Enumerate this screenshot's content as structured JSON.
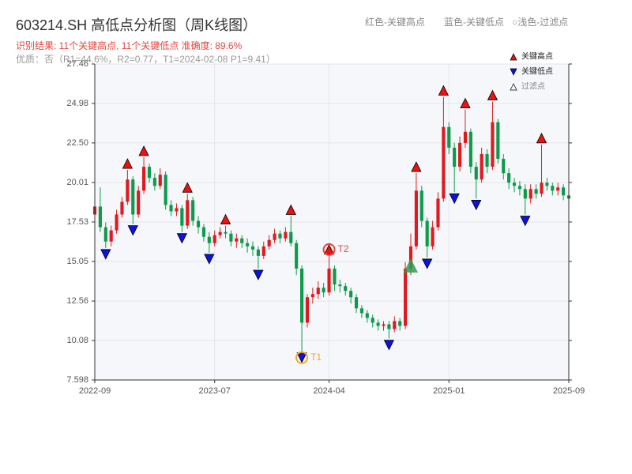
{
  "chart_data": {
    "type": "candlestick",
    "title": "603214.SH 高低点分析图（周K线图）",
    "header_legend": [
      "红色-关键高点",
      "蓝色-关键低点",
      "○浅色-过滤点"
    ],
    "subtitle": "识别结果: 11个关键高点, 11个关键低点  准确度: 89.6%",
    "note": "优质：否（R1=44.6%，R2=0.77，T1=2024-02-08 P1=9.41）",
    "categories": [
      "2022-09",
      null,
      null,
      null,
      null,
      null,
      null,
      null,
      null,
      null,
      null,
      null,
      null,
      null,
      null,
      null,
      null,
      null,
      null,
      null,
      null,
      null,
      "2023-07",
      null,
      null,
      null,
      null,
      null,
      null,
      null,
      null,
      null,
      null,
      null,
      null,
      null,
      null,
      null,
      null,
      null,
      null,
      null,
      null,
      "2024-04",
      null,
      null,
      null,
      null,
      null,
      null,
      null,
      null,
      null,
      null,
      null,
      null,
      null,
      null,
      null,
      null,
      null,
      null,
      null,
      null,
      null,
      "2025-01",
      null,
      null,
      null,
      null,
      null,
      null,
      null,
      null,
      null,
      null,
      null,
      null,
      null,
      null,
      null,
      null,
      null,
      null,
      null,
      null,
      null,
      "2025-09"
    ],
    "open": [
      18.0,
      18.5,
      17.2,
      16.3,
      17.0,
      18.0,
      18.8,
      20.2,
      18.0,
      19.5,
      21.0,
      20.3,
      19.8,
      20.5,
      18.6,
      18.2,
      18.4,
      17.3,
      18.9,
      17.6,
      17.2,
      16.6,
      16.2,
      16.7,
      16.9,
      16.8,
      16.3,
      16.5,
      16.2,
      16.0,
      15.8,
      15.4,
      16.0,
      16.4,
      16.8,
      16.5,
      16.9,
      16.2,
      14.6,
      11.2,
      12.8,
      13.0,
      13.4,
      13.1,
      14.6,
      13.6,
      13.5,
      13.2,
      12.8,
      12.1,
      11.8,
      11.5,
      11.2,
      11.0,
      11.1,
      10.8,
      11.3,
      11.0,
      14.6,
      16.0,
      19.5,
      17.6,
      16.0,
      17.2,
      19.0,
      23.5,
      22.2,
      21.0,
      22.5,
      23.2,
      21.0,
      20.2,
      21.8,
      21.0,
      23.8,
      21.5,
      20.6,
      20.0,
      19.8,
      19.6,
      19.0,
      19.6,
      19.3,
      20.0,
      19.8,
      19.5,
      19.7,
      19.2
    ],
    "high": [
      18.9,
      19.7,
      17.5,
      17.3,
      18.3,
      19.1,
      20.8,
      20.4,
      19.8,
      21.6,
      21.2,
      20.6,
      20.9,
      20.7,
      18.9,
      18.7,
      18.6,
      19.3,
      19.1,
      17.9,
      17.4,
      16.9,
      17.0,
      17.2,
      17.3,
      17.0,
      16.8,
      16.7,
      16.5,
      16.3,
      16.0,
      16.3,
      16.7,
      17.1,
      17.0,
      17.2,
      17.9,
      16.4,
      14.8,
      13.0,
      13.4,
      13.8,
      13.7,
      15.4,
      14.8,
      13.9,
      13.7,
      13.4,
      13.0,
      12.3,
      12.0,
      11.7,
      11.4,
      11.3,
      11.3,
      11.6,
      11.5,
      15.0,
      16.8,
      20.6,
      19.8,
      17.8,
      17.6,
      19.4,
      25.4,
      23.8,
      22.5,
      22.9,
      24.6,
      23.4,
      21.3,
      22.2,
      22.1,
      25.1,
      24.0,
      21.8,
      20.9,
      20.3,
      20.1,
      19.9,
      19.9,
      19.9,
      22.4,
      20.3,
      20.0,
      20.0,
      19.9,
      19.4
    ],
    "low": [
      17.6,
      16.9,
      15.9,
      16.0,
      16.8,
      17.8,
      18.6,
      17.4,
      17.8,
      19.3,
      20.0,
      19.5,
      19.6,
      18.3,
      17.9,
      17.9,
      16.9,
      17.1,
      17.3,
      16.8,
      16.3,
      15.6,
      16.0,
      16.5,
      16.5,
      16.0,
      15.9,
      15.9,
      15.6,
      15.4,
      14.6,
      15.2,
      15.8,
      16.2,
      16.2,
      16.3,
      16.0,
      14.2,
      9.4,
      10.9,
      12.4,
      12.7,
      12.8,
      12.9,
      13.2,
      13.1,
      12.9,
      12.4,
      11.8,
      11.5,
      11.2,
      10.9,
      10.7,
      10.7,
      10.2,
      10.6,
      10.7,
      10.8,
      14.2,
      15.8,
      17.2,
      15.3,
      15.8,
      17.0,
      18.8,
      21.8,
      19.4,
      20.7,
      22.2,
      20.6,
      19.0,
      20.0,
      20.6,
      20.8,
      21.2,
      20.2,
      19.6,
      19.4,
      19.2,
      18.0,
      18.7,
      19.0,
      19.1,
      19.5,
      19.2,
      19.2,
      18.9,
      18.7
    ],
    "close": [
      18.5,
      17.2,
      16.3,
      17.0,
      18.0,
      18.8,
      20.2,
      18.0,
      19.5,
      21.0,
      20.3,
      19.8,
      20.5,
      18.6,
      18.2,
      18.4,
      17.3,
      18.9,
      17.6,
      17.2,
      16.6,
      16.2,
      16.7,
      16.9,
      16.8,
      16.3,
      16.5,
      16.2,
      16.0,
      15.8,
      15.4,
      16.0,
      16.4,
      16.8,
      16.5,
      16.9,
      16.2,
      14.6,
      11.2,
      12.8,
      13.0,
      13.4,
      13.1,
      14.6,
      13.6,
      13.5,
      13.2,
      12.8,
      12.1,
      11.8,
      11.5,
      11.2,
      11.0,
      11.1,
      10.8,
      11.3,
      11.0,
      14.6,
      16.0,
      19.5,
      17.6,
      16.0,
      17.2,
      19.0,
      23.5,
      22.2,
      21.0,
      22.5,
      23.2,
      21.0,
      20.2,
      21.8,
      21.0,
      23.8,
      21.5,
      20.6,
      20.0,
      19.8,
      19.6,
      19.0,
      19.6,
      19.3,
      20.0,
      19.8,
      19.5,
      19.7,
      19.2,
      19.0
    ],
    "up_color": "#e0191e",
    "down_color": "#0d9a4a",
    "markers": [
      {
        "name": "关键高点",
        "color": "#ee1111",
        "shape": "up",
        "indices": [
          6,
          9,
          17,
          24,
          36,
          43,
          59,
          64,
          68,
          73,
          82
        ],
        "values": [
          20.8,
          21.6,
          19.3,
          17.3,
          17.9,
          15.4,
          20.6,
          25.4,
          24.6,
          25.1,
          22.4
        ]
      },
      {
        "name": "关键低点",
        "color": "#1111dd",
        "shape": "down",
        "indices": [
          2,
          7,
          16,
          21,
          30,
          38,
          54,
          61,
          66,
          70,
          79
        ],
        "values": [
          15.9,
          17.4,
          16.9,
          15.6,
          14.6,
          9.4,
          10.2,
          15.3,
          19.4,
          19.0,
          18.0
        ]
      },
      {
        "name": "过滤点",
        "color": "#2e9e55",
        "shape": "filtered",
        "indices": [
          58
        ],
        "values": [
          14.8
        ]
      }
    ],
    "annotations": [
      {
        "label": "T1",
        "index": 38,
        "value": 9.4,
        "color": "#f5a623",
        "shape": "down"
      },
      {
        "label": "T2",
        "index": 43,
        "value": 15.4,
        "color": "#e8453c",
        "shape": "up"
      }
    ],
    "ylim": [
      7.598,
      27.46
    ],
    "yticks": [
      7.598,
      10.08,
      12.56,
      15.05,
      17.53,
      20.01,
      {
        "value": 22.5,
        "label": "22.50"
      },
      24.98,
      27.46
    ],
    "grid": true
  }
}
